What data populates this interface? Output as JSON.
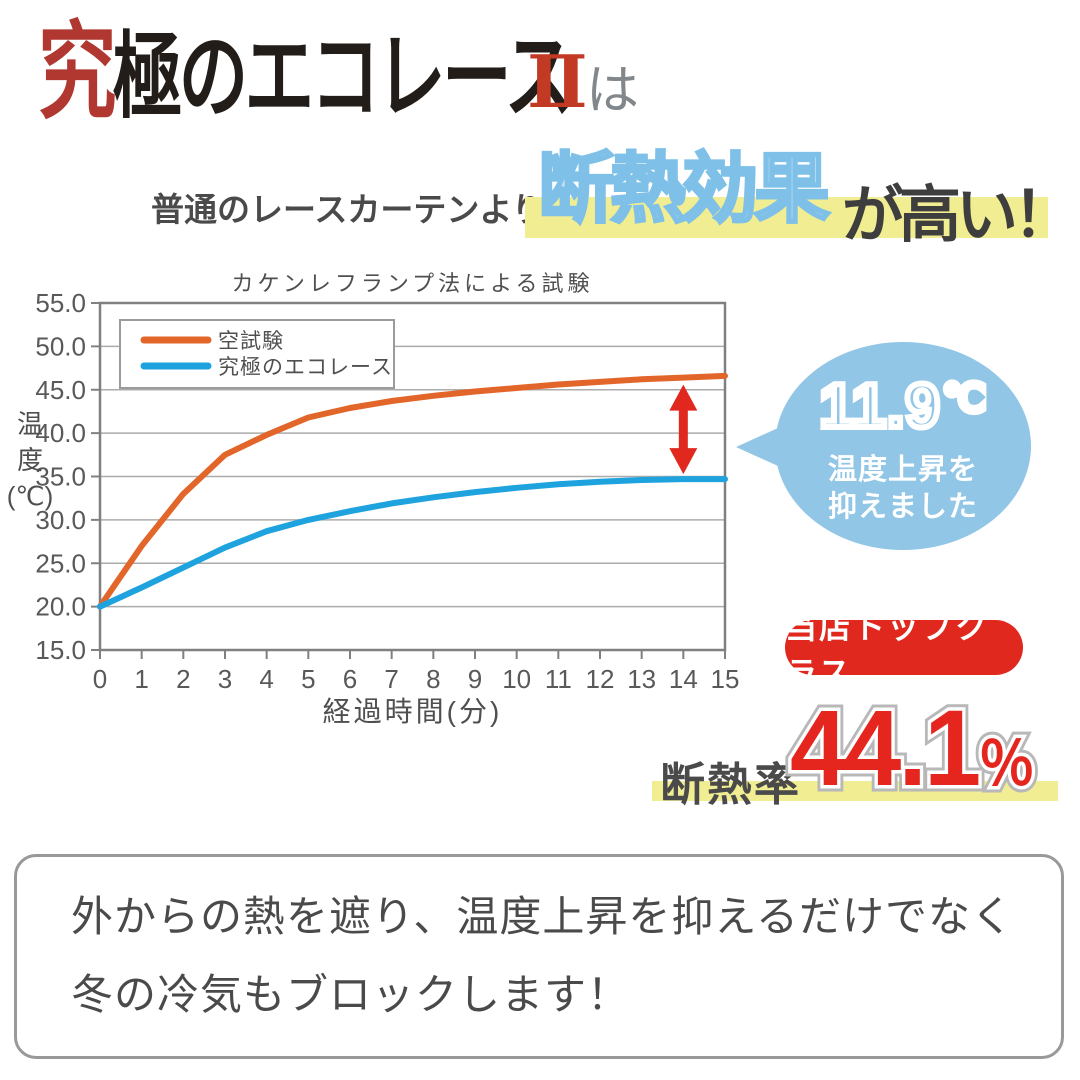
{
  "header": {
    "logo_first": "究",
    "logo_rest": "極のエコレース",
    "logo_suffix": "Ⅱ",
    "logo_particle": "は",
    "tagline_prefix": "普通のレースカーテンより",
    "tagline_highlight": "断熱効果",
    "tagline_suffix": "が高い！"
  },
  "chart_data": {
    "type": "line",
    "title": "カケンレフランプ法による試験",
    "xlabel": "経過時間(分)",
    "ylabel": "温度(℃)",
    "ylabel_lines": [
      "温",
      "度",
      "(℃)"
    ],
    "x": [
      0,
      1,
      2,
      3,
      4,
      5,
      6,
      7,
      8,
      9,
      10,
      11,
      12,
      13,
      14,
      15
    ],
    "xlim": [
      0,
      15
    ],
    "ylim": [
      15,
      55
    ],
    "ytick_step": 5,
    "grid": "horizontal",
    "legend_position": "top-left",
    "series": [
      {
        "name": "空試験",
        "color": "#E2662A",
        "values": [
          20.0,
          27.0,
          33.0,
          37.5,
          39.8,
          41.8,
          42.9,
          43.7,
          44.3,
          44.8,
          45.2,
          45.6,
          45.9,
          46.2,
          46.4,
          46.6
        ]
      },
      {
        "name": "究極のエコレース",
        "color": "#1FA3DE",
        "values": [
          20.0,
          22.2,
          24.5,
          26.8,
          28.7,
          30.0,
          31.0,
          31.9,
          32.6,
          33.2,
          33.7,
          34.1,
          34.4,
          34.6,
          34.7,
          34.7
        ]
      }
    ],
    "arrow": {
      "x": 14,
      "y_from": 34.7,
      "y_to": 46.4,
      "color": "#E0281E"
    }
  },
  "callout": {
    "value": "11.9",
    "unit": "℃",
    "line1": "温度上昇を",
    "line2": "抑えました"
  },
  "badge": {
    "label": "当店トップクラス"
  },
  "insulation": {
    "label": "断熱率",
    "value": "44.1",
    "percent": "％"
  },
  "footer": {
    "line1": "外からの熱を遮り、温度上昇を抑えるだけでなく",
    "line2": "冬の冷気もブロックします！"
  },
  "colors": {
    "accent_orange": "#E2662A",
    "accent_blue": "#1FA3DE",
    "bubble_blue": "#92C6E6",
    "highlight_yellow": "#F1ED92",
    "badge_red": "#E0281E",
    "number_red": "#E5261F",
    "text_dark": "#4A4A4A"
  }
}
